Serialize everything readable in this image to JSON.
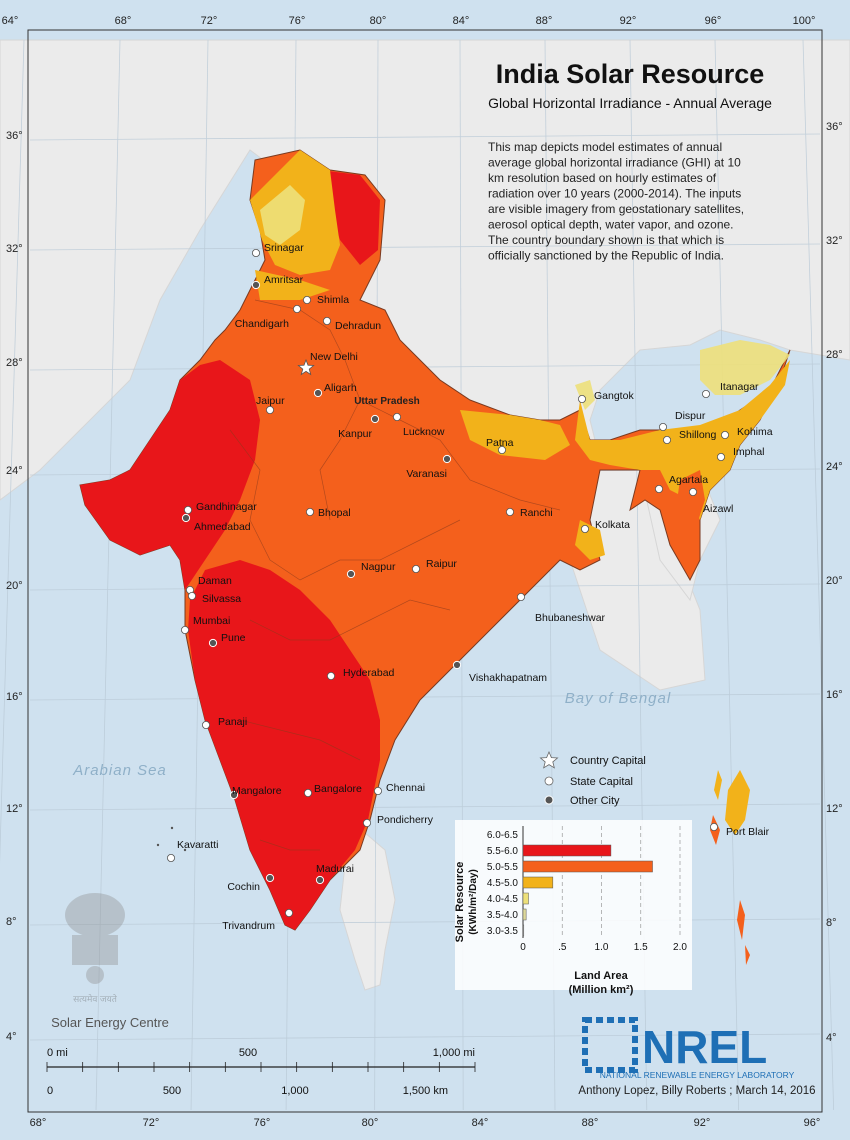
{
  "title": "India Solar Resource",
  "subtitle": "Global Horizontal Irradiance - Annual Average",
  "description": [
    "This map depicts model estimates of annual",
    "average global horizontal irradiance (GHI) at 10",
    "km resolution based on hourly estimates of",
    "radiation over 10 years (2000-2014).  The inputs",
    "are visible imagery from geostationary satellites,",
    "aerosol optical depth, water vapor, and ozone.",
    "The country boundary shown is that which is",
    "officially sanctioned by the Republic of India."
  ],
  "top_longitudes": [
    "64°",
    "68°",
    "72°",
    "76°",
    "80°",
    "84°",
    "88°",
    "92°",
    "96°",
    "100°"
  ],
  "bottom_longitudes": [
    "68°",
    "72°",
    "76°",
    "80°",
    "84°",
    "88°",
    "92°",
    "96°"
  ],
  "left_latitudes": [
    "36°",
    "32°",
    "28°",
    "24°",
    "20°",
    "16°",
    "12°",
    "8°",
    "4°"
  ],
  "right_latitudes": [
    "36°",
    "32°",
    "28°",
    "24°",
    "20°",
    "16°",
    "12°",
    "8°",
    "4°"
  ],
  "seas": {
    "arabian": "Arabian Sea",
    "bengal": "Bay of Bengal"
  },
  "region_label": "Uttar Pradesh",
  "cities": [
    {
      "name": "Srinagar",
      "kind": "state"
    },
    {
      "name": "Amritsar",
      "kind": "other"
    },
    {
      "name": "Shimla",
      "kind": "state"
    },
    {
      "name": "Chandigarh",
      "kind": "state"
    },
    {
      "name": "Dehradun",
      "kind": "state"
    },
    {
      "name": "New Delhi",
      "kind": "capital"
    },
    {
      "name": "Aligarh",
      "kind": "other"
    },
    {
      "name": "Jaipur",
      "kind": "state"
    },
    {
      "name": "Kanpur",
      "kind": "other"
    },
    {
      "name": "Lucknow",
      "kind": "state"
    },
    {
      "name": "Patna",
      "kind": "state"
    },
    {
      "name": "Varanasi",
      "kind": "other"
    },
    {
      "name": "Gandhinagar",
      "kind": "state"
    },
    {
      "name": "Ahmedabad",
      "kind": "other"
    },
    {
      "name": "Bhopal",
      "kind": "state"
    },
    {
      "name": "Ranchi",
      "kind": "state"
    },
    {
      "name": "Kolkata",
      "kind": "state"
    },
    {
      "name": "Nagpur",
      "kind": "other"
    },
    {
      "name": "Raipur",
      "kind": "state"
    },
    {
      "name": "Daman",
      "kind": "state"
    },
    {
      "name": "Silvassa",
      "kind": "state"
    },
    {
      "name": "Mumbai",
      "kind": "state"
    },
    {
      "name": "Pune",
      "kind": "other"
    },
    {
      "name": "Bhubaneshwar",
      "kind": "state"
    },
    {
      "name": "Hyderabad",
      "kind": "state"
    },
    {
      "name": "Vishakhapatnam",
      "kind": "other"
    },
    {
      "name": "Panaji",
      "kind": "state"
    },
    {
      "name": "Mangalore",
      "kind": "other"
    },
    {
      "name": "Bangalore",
      "kind": "state"
    },
    {
      "name": "Chennai",
      "kind": "state"
    },
    {
      "name": "Pondicherry",
      "kind": "state"
    },
    {
      "name": "Kavaratti",
      "kind": "state"
    },
    {
      "name": "Cochin",
      "kind": "other"
    },
    {
      "name": "Madurai",
      "kind": "other"
    },
    {
      "name": "Trivandrum",
      "kind": "state"
    },
    {
      "name": "Gangtok",
      "kind": "state"
    },
    {
      "name": "Itanagar",
      "kind": "state"
    },
    {
      "name": "Dispur",
      "kind": "state"
    },
    {
      "name": "Shillong",
      "kind": "state"
    },
    {
      "name": "Kohima",
      "kind": "state"
    },
    {
      "name": "Imphal",
      "kind": "state"
    },
    {
      "name": "Agartala",
      "kind": "state"
    },
    {
      "name": "Aizawl",
      "kind": "state"
    },
    {
      "name": "Port Blair",
      "kind": "state"
    }
  ],
  "legend": {
    "capital": "Country Capital",
    "state": "State Capital",
    "other": "Other City"
  },
  "chart_data": {
    "type": "bar",
    "orientation": "horizontal",
    "categories": [
      "6.0-6.5",
      "5.5-6.0",
      "5.0-5.5",
      "4.5-5.0",
      "4.0-4.5",
      "3.5-4.0",
      "3.0-3.5"
    ],
    "values": [
      0,
      1.12,
      1.65,
      0.38,
      0.07,
      0.04,
      0.01
    ],
    "colors": [
      "#b80000",
      "#e8161a",
      "#f4601c",
      "#f2b21a",
      "#ede07a",
      "#ddd89a",
      "#d8d8d8"
    ],
    "ylabel_line1": "Solar Resource",
    "ylabel_line2": "(KWh/m²/Day)",
    "xlabel_line1": "Land Area",
    "xlabel_line2": "(Million km²)",
    "xticks": [
      "0",
      ".5",
      "1.0",
      "1.5",
      "2.0"
    ],
    "xlim": [
      0,
      2.0
    ]
  },
  "scale": {
    "mi_labels": [
      "0 mi",
      "500",
      "1,000 mi"
    ],
    "km_labels": [
      "0",
      "500",
      "1,000",
      "1,500 km"
    ]
  },
  "branding": {
    "centre": "Solar Energy Centre",
    "emblem_motto": "सत्यमेव जयते",
    "nrel": "NREL",
    "nrel_full": "NATIONAL RENEWABLE ENERGY LABORATORY",
    "credit": "Anthony Lopez, Billy Roberts ; March 14, 2016"
  },
  "colors": {
    "sea": "#cfe1ef",
    "land": "#ececec",
    "very_high": "#e8161a",
    "high": "#f4601c",
    "medium": "#f2b21a",
    "low": "#ede07a"
  }
}
